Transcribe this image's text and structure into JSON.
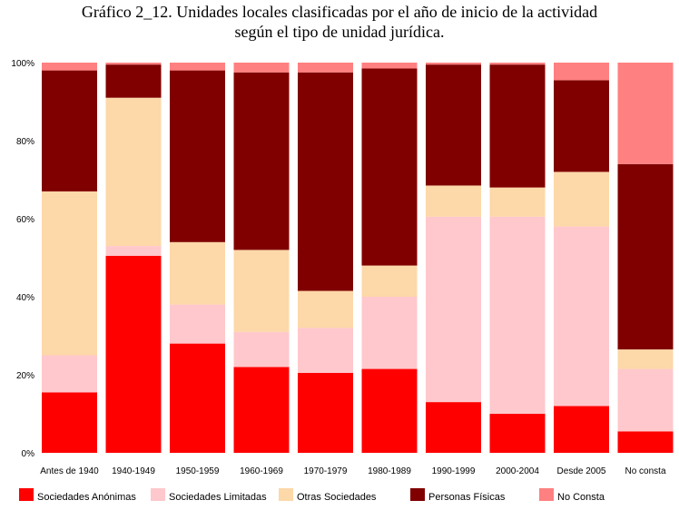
{
  "chart_data": {
    "type": "bar",
    "stacked": true,
    "title_line1": "Gráfico 2_12. Unidades locales clasificadas por el año de inicio de la actividad",
    "title_line2": "según el tipo de unidad jurídica.",
    "categories": [
      "Antes de 1940",
      "1940-1949",
      "1950-1959",
      "1960-1969",
      "1970-1979",
      "1980-1989",
      "1990-1999",
      "2000-2004",
      "Desde 2005",
      "No consta"
    ],
    "ylim": [
      0,
      100
    ],
    "yticks": [
      "0%",
      "20%",
      "40%",
      "60%",
      "80%",
      "100%"
    ],
    "grid": false,
    "legend_position": "bottom",
    "series": [
      {
        "name": "Sociedades Anónimas",
        "color": "#ff0000",
        "values": [
          15.5,
          50.5,
          28,
          22,
          20.5,
          21.5,
          13,
          10,
          12,
          5.5
        ]
      },
      {
        "name": "Sociedades Limitadas",
        "color": "#ffc8cc",
        "values": [
          9.5,
          2.5,
          10,
          9,
          11.5,
          18.5,
          47.5,
          50.5,
          46,
          16
        ]
      },
      {
        "name": "Otras Sociedades",
        "color": "#fdd8a8",
        "values": [
          42,
          38,
          16,
          21,
          9.5,
          8,
          8,
          7.5,
          14,
          5
        ]
      },
      {
        "name": "Personas Físicas",
        "color": "#800000",
        "values": [
          31,
          8.5,
          44,
          45.5,
          56,
          50.5,
          31,
          31.5,
          23.5,
          47.5
        ]
      },
      {
        "name": "No Consta",
        "color": "#ff8080",
        "values": [
          2,
          0.5,
          2,
          2.5,
          2.5,
          1.5,
          0.5,
          0.5,
          4.5,
          26
        ]
      }
    ]
  }
}
